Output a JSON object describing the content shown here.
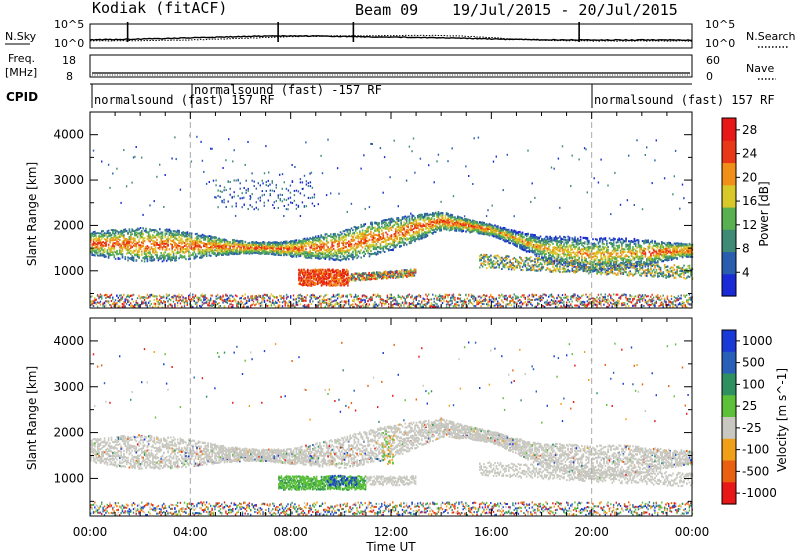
{
  "header": {
    "station": "Kodiak (fitACF)",
    "beam": "Beam 09",
    "date_range": "19/Jul/2015 - 20/Jul/2015"
  },
  "noise_panel": {
    "left_label": "N.Sky",
    "right_label": "N.Search",
    "left_ticks": [
      "10^5",
      "10^0"
    ],
    "right_ticks": [
      "10^5",
      "10^0"
    ]
  },
  "freq_panel": {
    "left_label_1": "Freq.",
    "left_label_2": "[MHz]",
    "right_label": "Nave",
    "left_ticks": [
      "18",
      "8"
    ],
    "right_ticks": [
      "60",
      "0"
    ]
  },
  "cpid": {
    "label": "CPID",
    "segments": [
      {
        "text": "normalsound (fast) 157 RF",
        "start_hour": 0
      },
      {
        "text": "normalsound (fast) -157 RF",
        "start_hour": 4
      },
      {
        "text": "normalsound (fast) 157 RF",
        "start_hour": 20
      }
    ]
  },
  "colors": {
    "power_scale": [
      "#1a2ad6",
      "#2a5cb0",
      "#3e8a74",
      "#58b050",
      "#d8c828",
      "#f09018",
      "#e83818",
      "#e81818"
    ],
    "velocity_scale": [
      "#1a3ad8",
      "#2860b8",
      "#2e9060",
      "#5cc038",
      "#c8c8c0",
      "#f0a018",
      "#e86010",
      "#e81818"
    ],
    "grey_scatter": "#c8c8c0"
  },
  "chart_data": [
    {
      "type": "heatmap",
      "name": "power",
      "xlabel": "",
      "ylabel": "Slant Range [km]",
      "xlim": [
        0,
        24
      ],
      "ylim": [
        180,
        4500
      ],
      "y_ticks": [
        1000,
        2000,
        3000,
        4000
      ],
      "x_ticks": [
        "00:00",
        "04:00",
        "08:00",
        "12:00",
        "16:00",
        "20:00",
        "00:00"
      ],
      "colorbar": {
        "label": "Power [dB]",
        "ticks": [
          4,
          8,
          12,
          16,
          20,
          24,
          28
        ],
        "range": [
          0,
          30
        ]
      },
      "features": [
        {
          "band": "main echo band",
          "hour_start": 0,
          "hour_end": 24,
          "range_km_at": [
            [
              0,
              1600
            ],
            [
              4,
              1550
            ],
            [
              8,
              1480
            ],
            [
              10,
              1550
            ],
            [
              12,
              1800
            ],
            [
              14,
              2100
            ],
            [
              16,
              1900
            ],
            [
              18,
              1500
            ],
            [
              20,
              1350
            ],
            [
              24,
              1450
            ]
          ],
          "power_db_peak": 24
        },
        {
          "band": "strong low-range echo",
          "hour_start": 8.3,
          "hour_end": 13,
          "range_km": 850,
          "power_db_peak": 28
        },
        {
          "band": "upper sporadic echoes",
          "hour_start": 5,
          "hour_end": 9,
          "range_km": 2700,
          "power_db_peak": 6
        }
      ]
    },
    {
      "type": "heatmap",
      "name": "velocity",
      "xlabel": "Time UT",
      "ylabel": "Slant Range [km]",
      "xlim": [
        0,
        24
      ],
      "ylim": [
        180,
        4500
      ],
      "y_ticks": [
        1000,
        2000,
        3000,
        4000
      ],
      "x_ticks": [
        "00:00",
        "04:00",
        "08:00",
        "12:00",
        "16:00",
        "20:00",
        "00:00"
      ],
      "colorbar": {
        "label": "Velocity [m s^-1]",
        "ticks": [
          "1000",
          "500",
          "100",
          "25",
          "-25",
          "-100",
          "-500",
          "-1000"
        ]
      },
      "features": [
        {
          "band": "ground scatter (grey)",
          "velocity": "25 to -25"
        },
        {
          "band": "green low-range echo",
          "hour_start": 7.5,
          "hour_end": 11,
          "range_km": 900,
          "velocity": 100
        },
        {
          "band": "blue patch",
          "hour": 10,
          "range_km": 950,
          "velocity": 1000
        }
      ]
    }
  ],
  "x_axis_title": "Time UT"
}
